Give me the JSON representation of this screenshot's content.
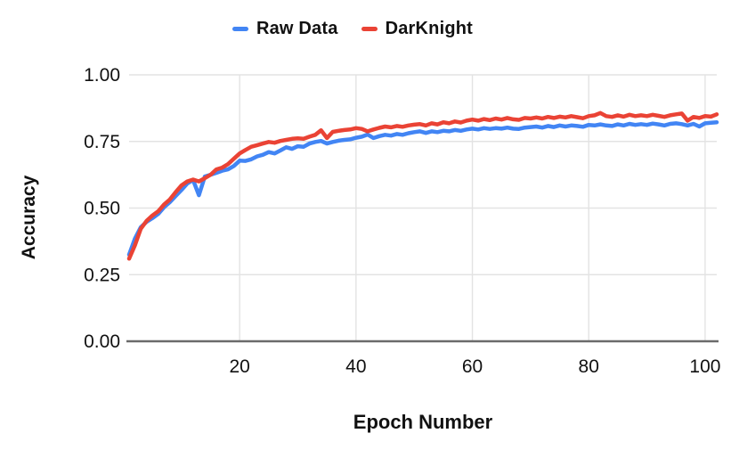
{
  "style": {
    "background": "#ffffff",
    "series_blue": "#4285F4",
    "series_red": "#EA4335",
    "gridline": "#e3e3e3",
    "axis_line": "#6b6b6b",
    "text": "#111111"
  },
  "chart_data": {
    "type": "line",
    "title": "",
    "xlabel": "Epoch Number",
    "ylabel": "Accuracy",
    "xlim": [
      1,
      102
    ],
    "ylim": [
      0,
      1
    ],
    "x_ticks": [
      20,
      40,
      60,
      80,
      100
    ],
    "y_ticks": [
      0,
      0.25,
      0.5,
      0.75,
      1
    ],
    "y_tick_labels": [
      "0.00",
      "0.25",
      "0.50",
      "0.75",
      "1.00"
    ],
    "grid": true,
    "legend_position": "top-center",
    "x": [
      1,
      2,
      3,
      4,
      5,
      6,
      7,
      8,
      9,
      10,
      11,
      12,
      13,
      14,
      15,
      16,
      17,
      18,
      19,
      20,
      21,
      22,
      23,
      24,
      25,
      26,
      27,
      28,
      29,
      30,
      31,
      32,
      33,
      34,
      35,
      36,
      37,
      38,
      39,
      40,
      41,
      42,
      43,
      44,
      45,
      46,
      47,
      48,
      49,
      50,
      51,
      52,
      53,
      54,
      55,
      56,
      57,
      58,
      59,
      60,
      61,
      62,
      63,
      64,
      65,
      66,
      67,
      68,
      69,
      70,
      71,
      72,
      73,
      74,
      75,
      76,
      77,
      78,
      79,
      80,
      81,
      82,
      83,
      84,
      85,
      86,
      87,
      88,
      89,
      90,
      91,
      92,
      93,
      94,
      95,
      96,
      97,
      98,
      99,
      100,
      101,
      102
    ],
    "series": [
      {
        "name": "Raw Data",
        "color": "#4285F4",
        "values": [
          0.325,
          0.385,
          0.428,
          0.448,
          0.462,
          0.478,
          0.503,
          0.522,
          0.545,
          0.568,
          0.592,
          0.605,
          0.548,
          0.618,
          0.625,
          0.632,
          0.64,
          0.645,
          0.658,
          0.678,
          0.677,
          0.683,
          0.694,
          0.7,
          0.71,
          0.705,
          0.716,
          0.728,
          0.722,
          0.732,
          0.73,
          0.742,
          0.748,
          0.752,
          0.742,
          0.748,
          0.753,
          0.756,
          0.758,
          0.764,
          0.768,
          0.776,
          0.763,
          0.77,
          0.775,
          0.772,
          0.778,
          0.775,
          0.781,
          0.785,
          0.788,
          0.782,
          0.788,
          0.785,
          0.79,
          0.788,
          0.793,
          0.79,
          0.795,
          0.798,
          0.795,
          0.8,
          0.797,
          0.8,
          0.798,
          0.802,
          0.798,
          0.797,
          0.802,
          0.804,
          0.806,
          0.802,
          0.808,
          0.804,
          0.81,
          0.806,
          0.81,
          0.808,
          0.805,
          0.812,
          0.81,
          0.814,
          0.81,
          0.808,
          0.814,
          0.81,
          0.816,
          0.812,
          0.815,
          0.812,
          0.817,
          0.814,
          0.81,
          0.816,
          0.818,
          0.815,
          0.81,
          0.816,
          0.806,
          0.818,
          0.82,
          0.822
        ]
      },
      {
        "name": "DarKnight",
        "color": "#EA4335",
        "values": [
          0.31,
          0.36,
          0.422,
          0.452,
          0.472,
          0.488,
          0.513,
          0.532,
          0.56,
          0.585,
          0.6,
          0.607,
          0.6,
          0.612,
          0.625,
          0.645,
          0.652,
          0.665,
          0.685,
          0.705,
          0.718,
          0.73,
          0.736,
          0.742,
          0.748,
          0.745,
          0.752,
          0.756,
          0.76,
          0.762,
          0.76,
          0.768,
          0.775,
          0.792,
          0.763,
          0.786,
          0.79,
          0.793,
          0.795,
          0.8,
          0.797,
          0.788,
          0.795,
          0.801,
          0.806,
          0.803,
          0.808,
          0.805,
          0.81,
          0.813,
          0.815,
          0.81,
          0.818,
          0.814,
          0.822,
          0.818,
          0.825,
          0.821,
          0.828,
          0.832,
          0.828,
          0.834,
          0.83,
          0.836,
          0.832,
          0.838,
          0.833,
          0.831,
          0.838,
          0.836,
          0.84,
          0.836,
          0.842,
          0.838,
          0.843,
          0.84,
          0.845,
          0.841,
          0.837,
          0.845,
          0.848,
          0.857,
          0.845,
          0.842,
          0.848,
          0.843,
          0.85,
          0.845,
          0.848,
          0.845,
          0.85,
          0.846,
          0.842,
          0.848,
          0.852,
          0.855,
          0.828,
          0.842,
          0.838,
          0.845,
          0.843,
          0.852
        ]
      }
    ]
  }
}
